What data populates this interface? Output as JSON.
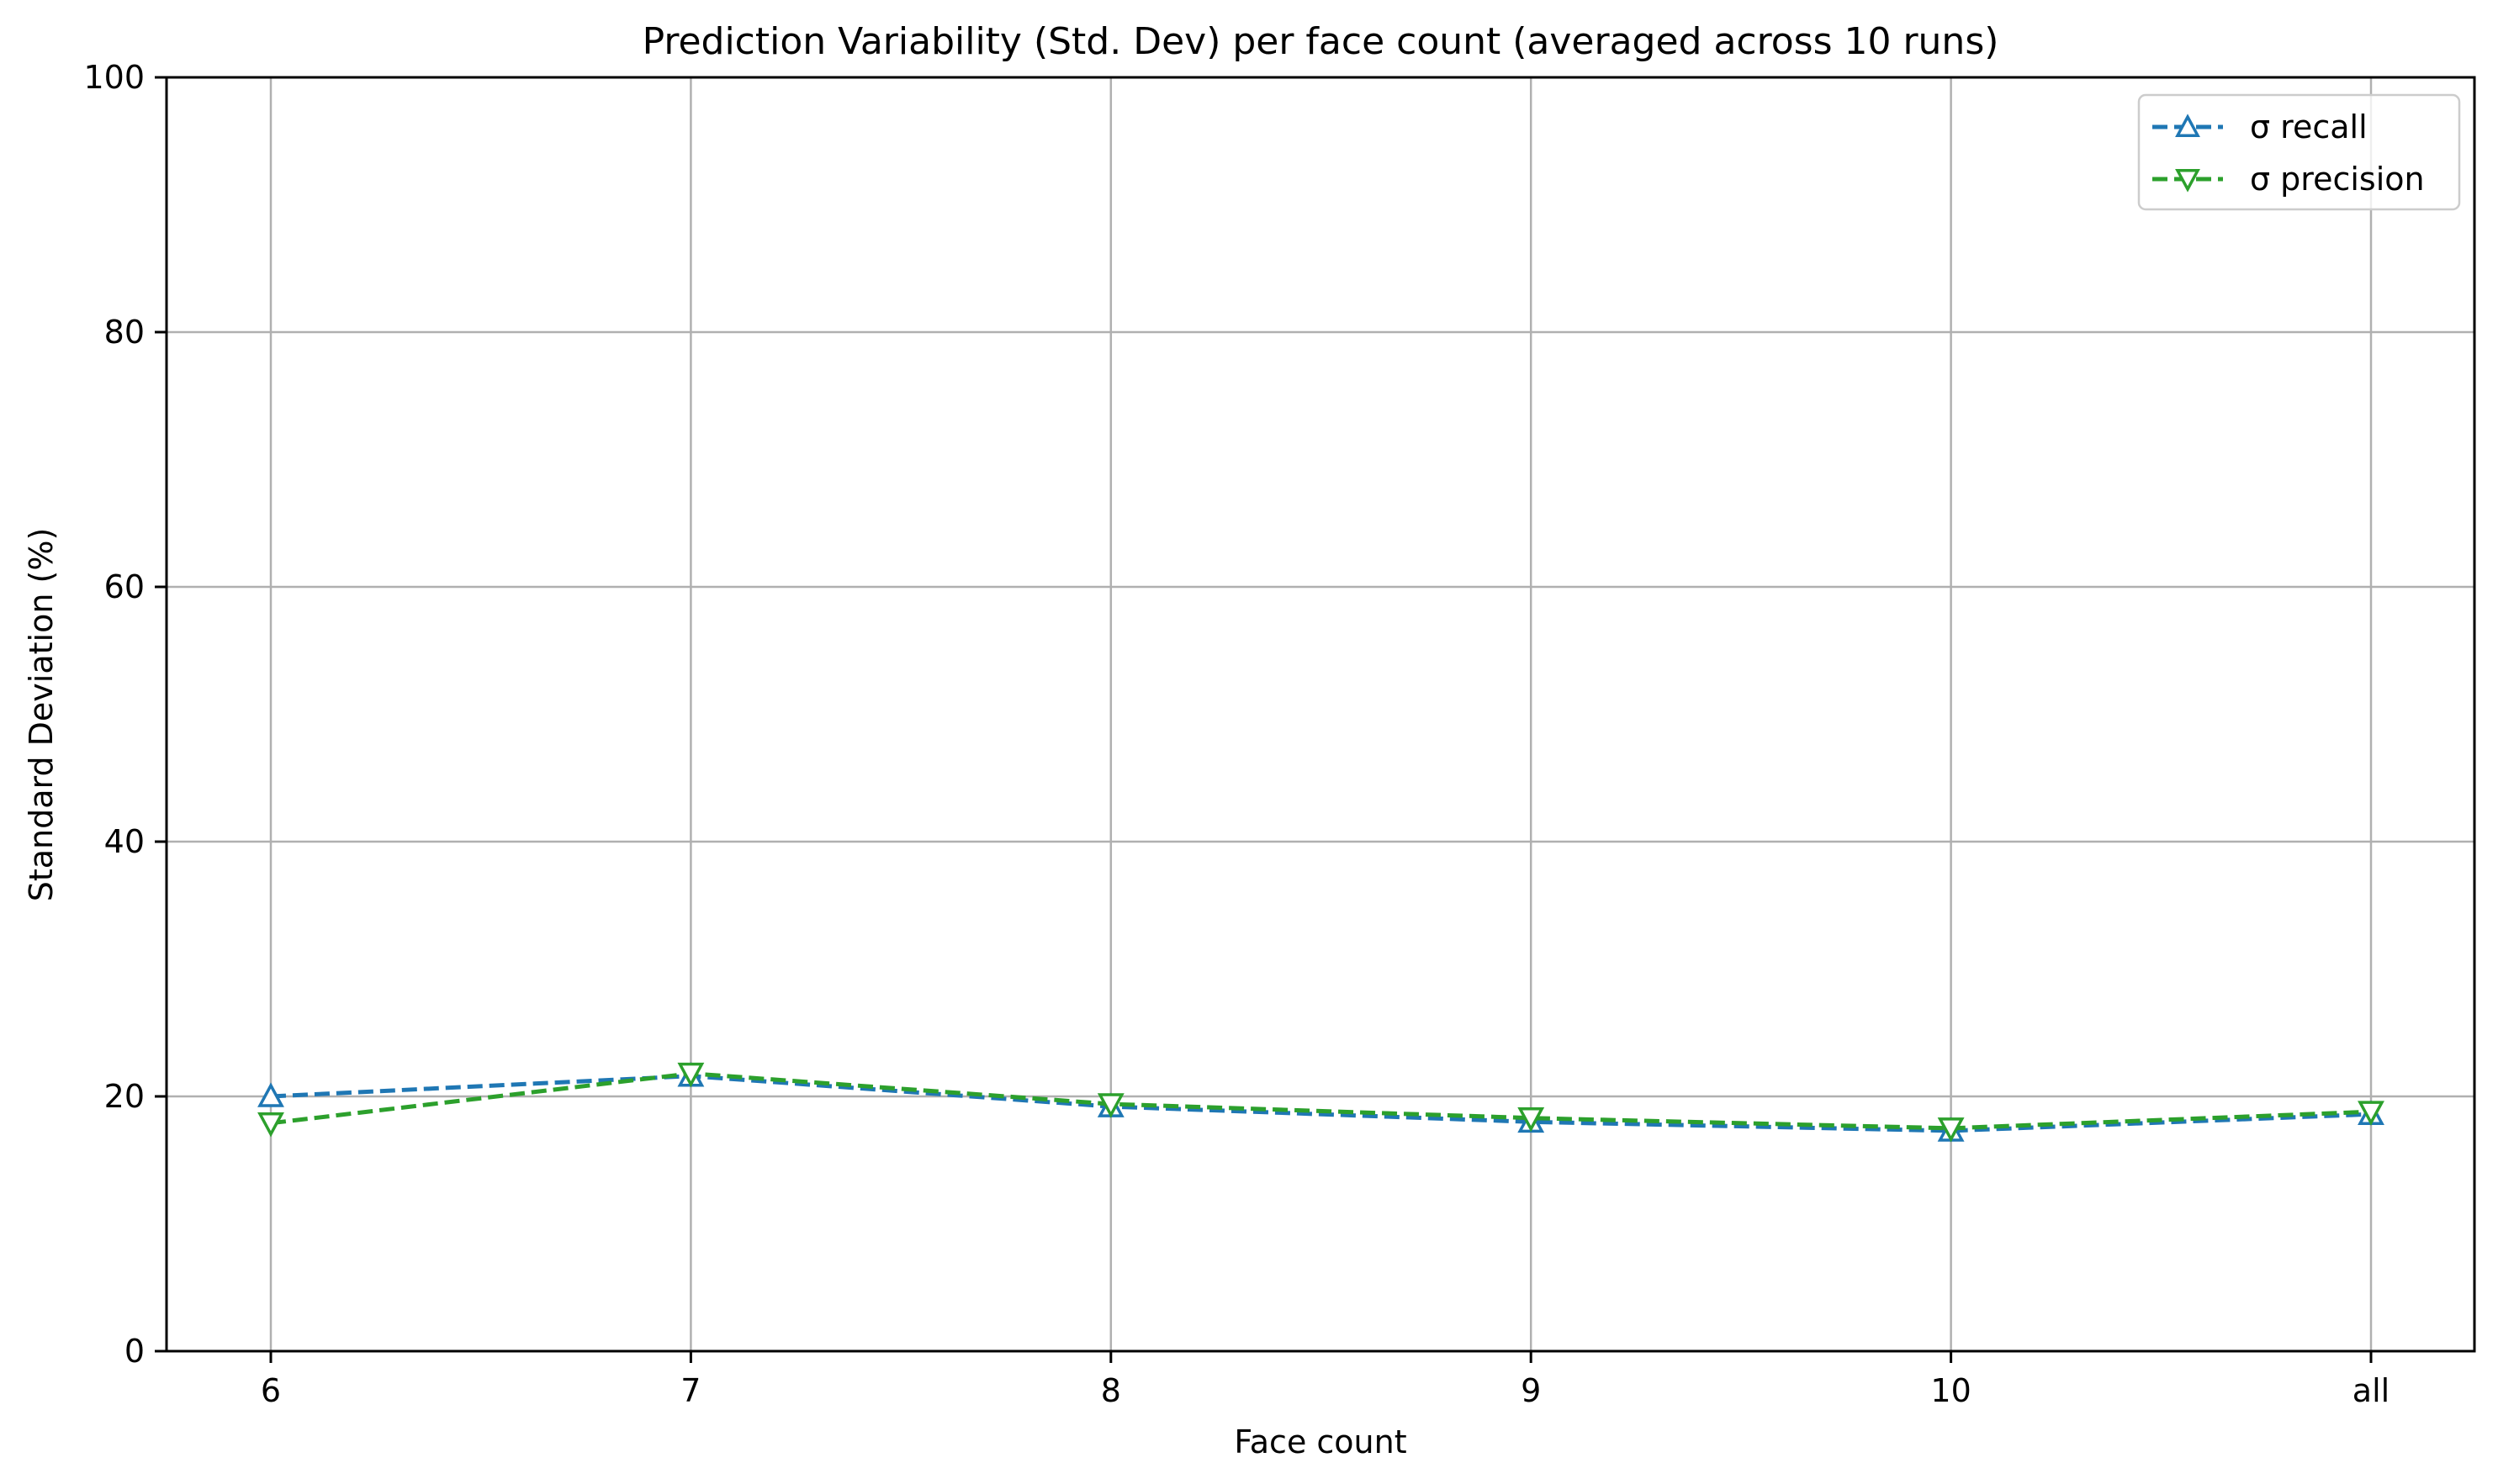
{
  "chart_data": {
    "type": "line",
    "title": "Prediction Variability (Std. Dev) per face count (averaged across 10 runs)",
    "xlabel": "Face count",
    "ylabel": "Standard Deviation (%)",
    "categories": [
      "6",
      "7",
      "8",
      "9",
      "10",
      "all"
    ],
    "ylim": [
      0,
      100
    ],
    "yticks": [
      "0",
      "20",
      "40",
      "60",
      "80",
      "100"
    ],
    "grid": true,
    "legend_position": "top-right",
    "series": [
      {
        "name": "σ recall",
        "values": [
          20.0,
          21.6,
          19.2,
          18.0,
          17.3,
          18.6
        ],
        "color": "#1f77b4",
        "marker": "triangle-up-icon",
        "line_style": "dashed"
      },
      {
        "name": "σ precision",
        "values": [
          17.9,
          21.8,
          19.4,
          18.3,
          17.5,
          18.8
        ],
        "color": "#2ca02c",
        "marker": "triangle-down-icon",
        "line_style": "dashed"
      }
    ]
  }
}
